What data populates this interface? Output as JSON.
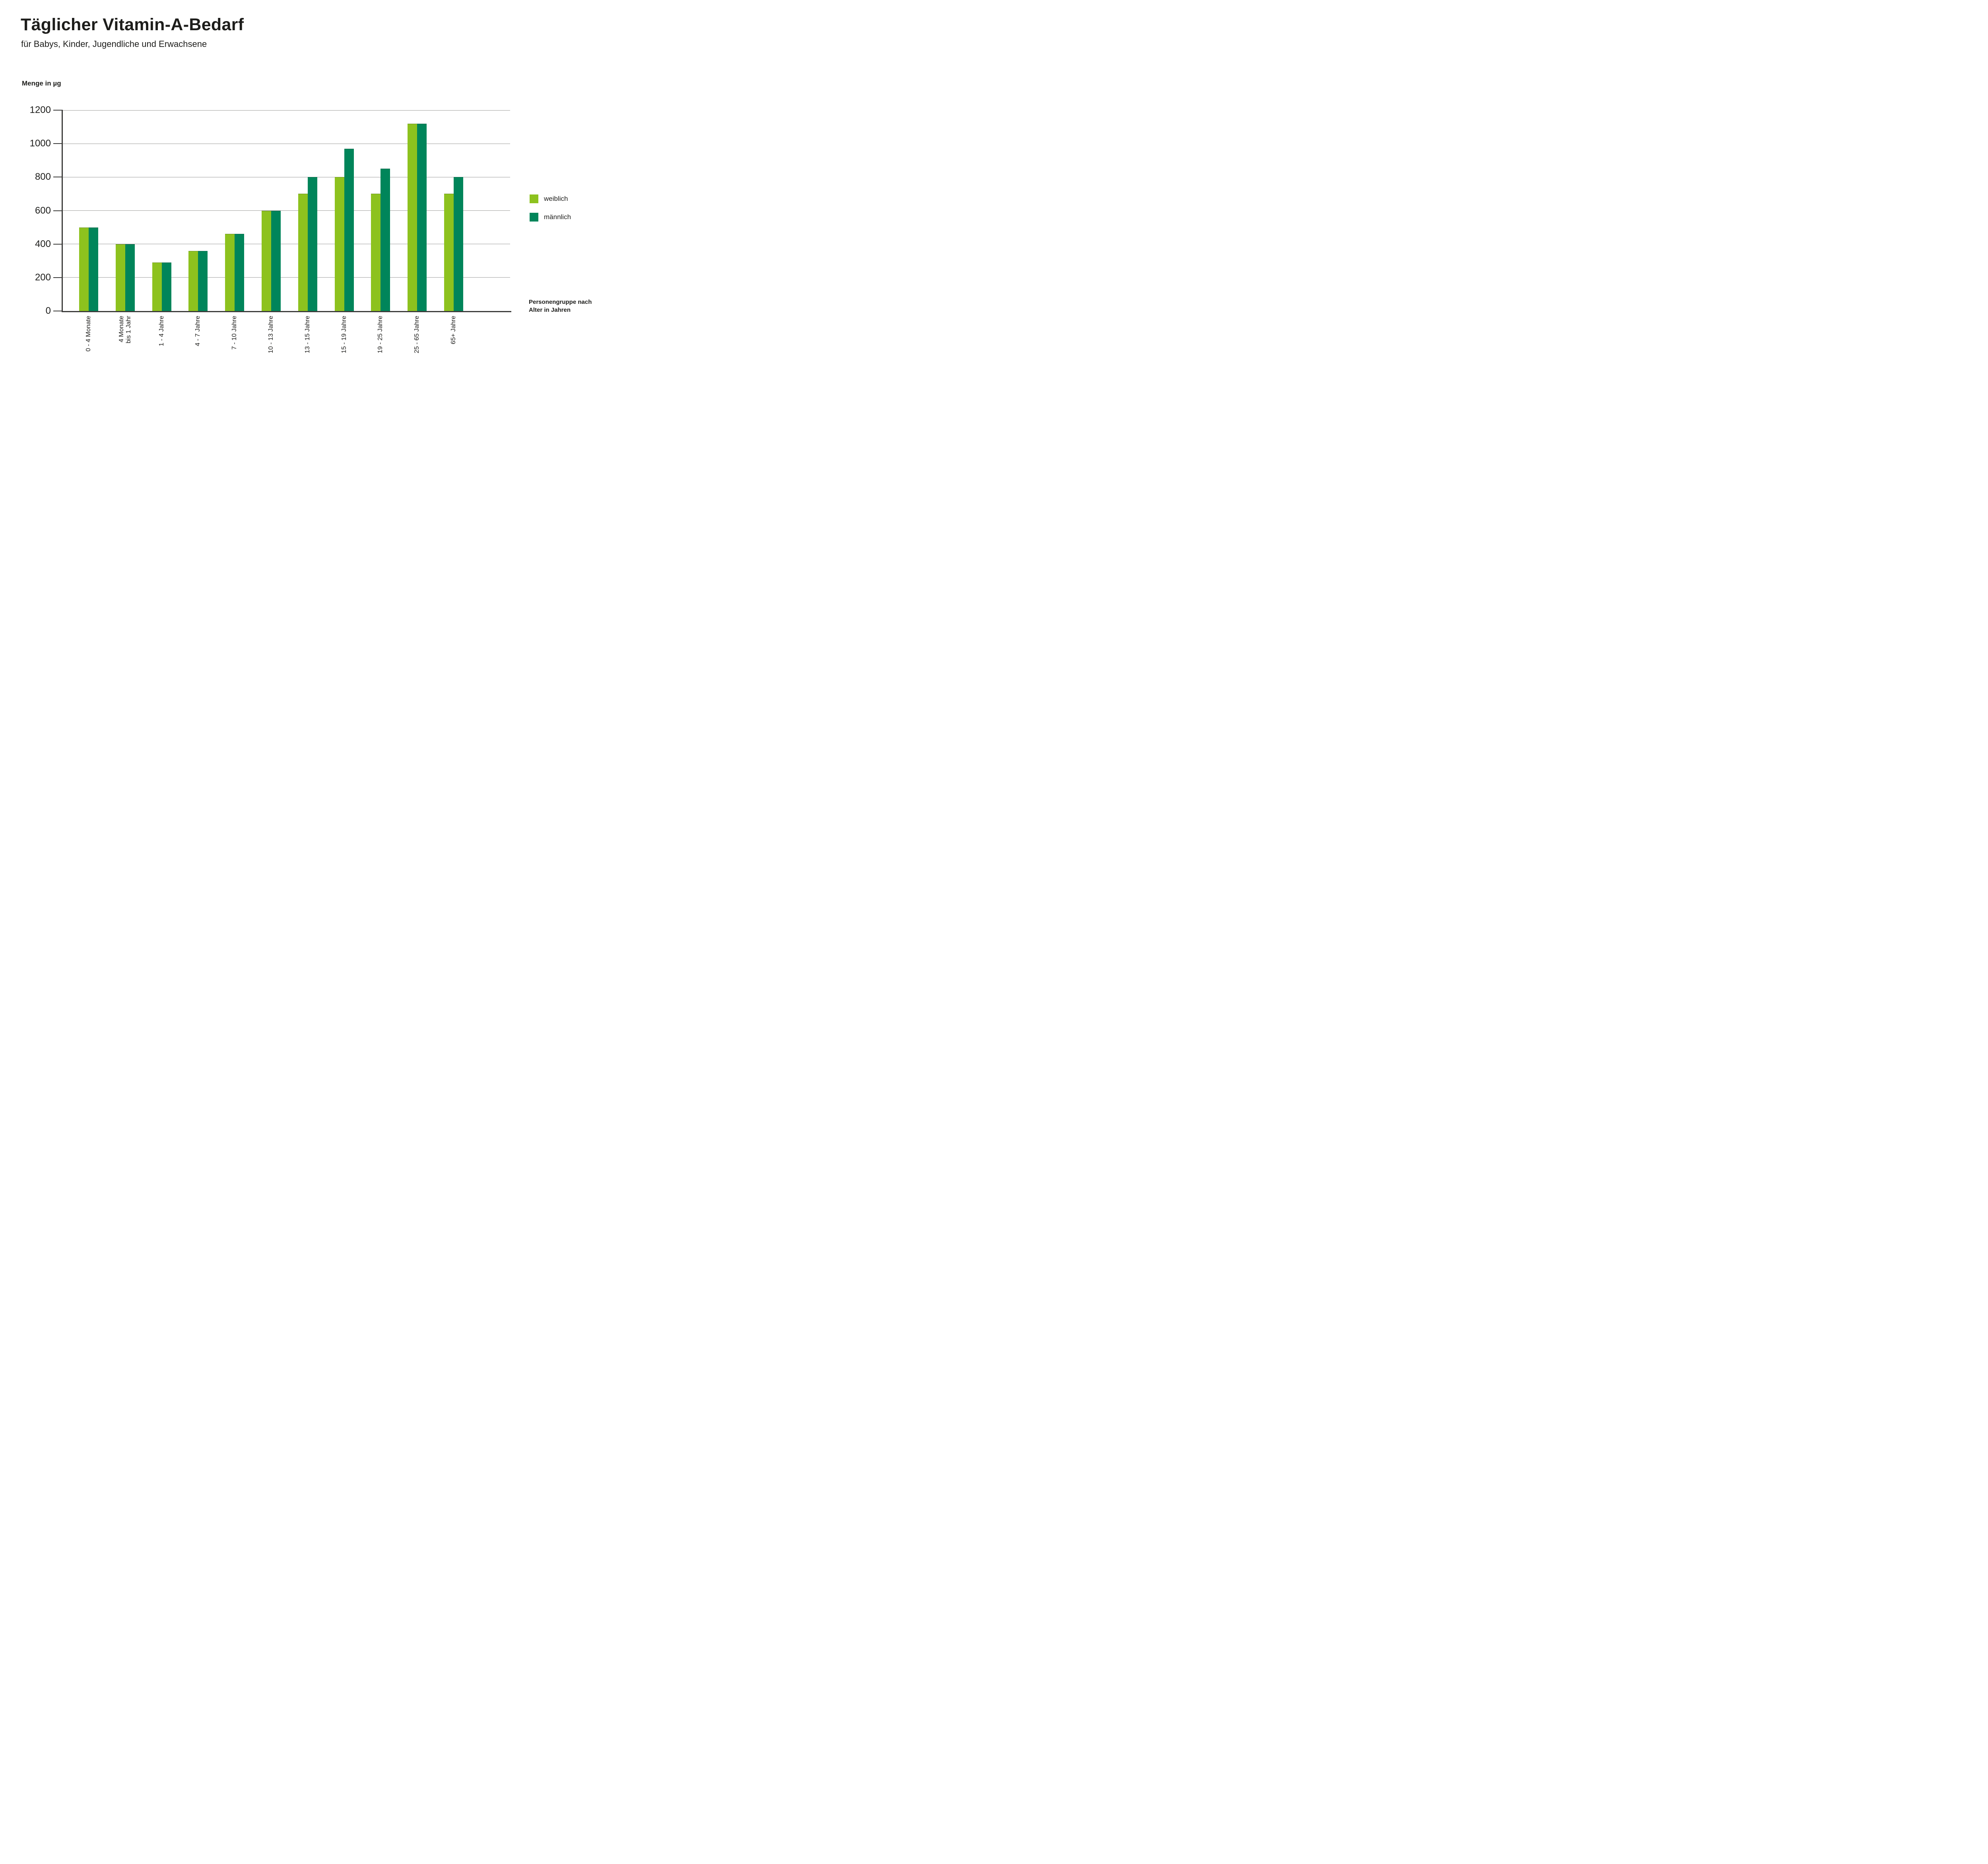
{
  "header": {
    "title": "Täglicher Vitamin-A-Bedarf",
    "subtitle": "für Babys, Kinder, Jugendliche und Erwachsene"
  },
  "chart_data": {
    "type": "bar",
    "title": "Täglicher Vitamin-A-Bedarf",
    "subtitle": "für Babys, Kinder, Jugendliche und Erwachsene",
    "ylabel": "Menge in µg",
    "xlabel_caption": "Personengruppe nach Alter in Jahren",
    "ylim": [
      0,
      1200
    ],
    "yticks": [
      0,
      200,
      400,
      600,
      800,
      1000,
      1200
    ],
    "grid": true,
    "legend_position": "right",
    "categories": [
      "0 - 4 Monate",
      "4 Monate\nbis 1 Jahr",
      "1 - 4 Jahre",
      "4 - 7 Jahre",
      "7 - 10 Jahre",
      "10 - 13 Jahre",
      "13 - 15 Jahre",
      "15 - 19 Jahre",
      "19 - 25 Jahre",
      "25 - 65 Jahre",
      "65+ Jahre"
    ],
    "series": [
      {
        "name": "weiblich",
        "color": "#8dc21e",
        "values": [
          500,
          400,
          290,
          360,
          460,
          600,
          700,
          800,
          700,
          1120,
          700
        ]
      },
      {
        "name": "männlich",
        "color": "#00855a",
        "values": [
          500,
          400,
          290,
          360,
          460,
          600,
          800,
          970,
          850,
          1120,
          800
        ]
      }
    ]
  },
  "colors": {
    "text": "#1d1d1b",
    "axis": "#3c3c3b",
    "grid": "#9d9d9c",
    "background": "#ffffff"
  }
}
